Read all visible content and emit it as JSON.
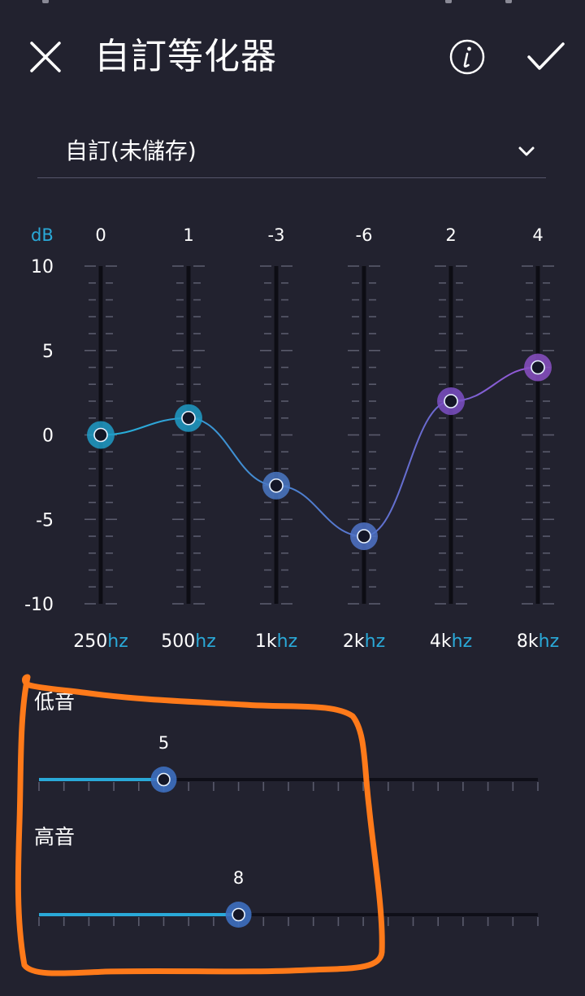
{
  "header": {
    "title": "自訂等化器",
    "close_icon": "close-icon",
    "info_icon": "info-icon",
    "confirm_icon": "check-icon"
  },
  "preset": {
    "selected": "自訂(未儲存)",
    "icon": "chevron-down-icon"
  },
  "equalizer": {
    "unit_label": "dB",
    "scale_labels": [
      "10",
      "5",
      "0",
      "-5",
      "-10"
    ],
    "scale_range": [
      -10,
      10
    ],
    "bands": [
      {
        "value_label": "0",
        "value": 0,
        "freq_num": "250",
        "freq_unit": "hz",
        "color": "#1e9bc6"
      },
      {
        "value_label": "1",
        "value": 1,
        "freq_num": "500",
        "freq_unit": "hz",
        "color": "#1e9bc6"
      },
      {
        "value_label": "-3",
        "value": -3,
        "freq_num": "1k",
        "freq_unit": "hz",
        "color": "#4a78c4"
      },
      {
        "value_label": "-6",
        "value": -6,
        "freq_num": "2k",
        "freq_unit": "hz",
        "color": "#4f73c8"
      },
      {
        "value_label": "2",
        "value": 2,
        "freq_num": "4k",
        "freq_unit": "hz",
        "color": "#7b4fc4"
      },
      {
        "value_label": "4",
        "value": 4,
        "freq_num": "8k",
        "freq_unit": "hz",
        "color": "#8a50c4"
      }
    ]
  },
  "bass": {
    "label": "低音",
    "value_label": "5",
    "level": 0.25,
    "color": "#2aa9d8"
  },
  "treble": {
    "label": "高音",
    "value_label": "8",
    "level": 0.4,
    "color": "#2aa9d8"
  },
  "colors": {
    "background": "#22222f",
    "accent": "#29a8dd",
    "annotation": "#ff7a1a"
  }
}
